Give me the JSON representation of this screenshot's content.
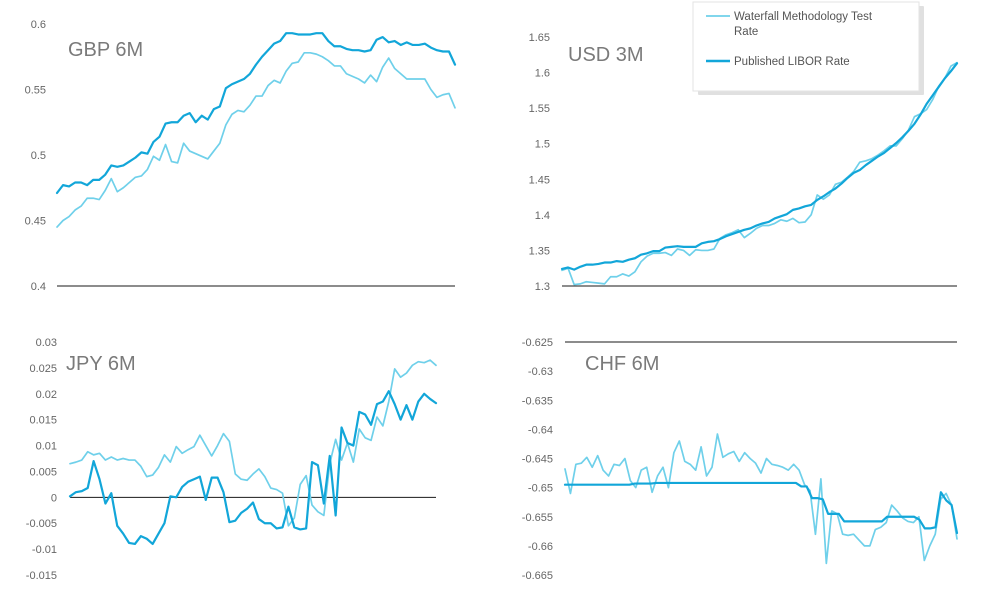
{
  "colors": {
    "test": "#6fd0ea",
    "libor": "#12a6d9",
    "axis": "#1a1a1a",
    "text": "#666666",
    "title": "#7a7a7a"
  },
  "legend": {
    "test_label_line1": "Waterfall Methodology Test",
    "test_label_line2": "Rate",
    "libor_label": "Published LIBOR Rate",
    "placement": "top-right"
  },
  "chart_data": [
    {
      "type": "line",
      "title": "GBP 6M",
      "ylim": [
        0.4,
        0.6
      ],
      "yticks": [
        "0.6",
        "0.55",
        "0.5",
        "0.45",
        "0.4"
      ],
      "ytick_values": [
        0.6,
        0.55,
        0.5,
        0.45,
        0.4
      ],
      "baseline": 0.4,
      "grid": false,
      "series": [
        {
          "key": "test",
          "values": [
            0.445,
            0.45,
            0.453,
            0.458,
            0.461,
            0.467,
            0.467,
            0.466,
            0.473,
            0.482,
            0.472,
            0.475,
            0.479,
            0.483,
            0.484,
            0.489,
            0.499,
            0.496,
            0.508,
            0.495,
            0.494,
            0.509,
            0.503,
            0.501,
            0.499,
            0.497,
            0.503,
            0.509,
            0.523,
            0.531,
            0.534,
            0.533,
            0.538,
            0.545,
            0.545,
            0.553,
            0.557,
            0.555,
            0.564,
            0.57,
            0.571,
            0.578,
            0.578,
            0.577,
            0.575,
            0.572,
            0.568,
            0.568,
            0.562,
            0.56,
            0.558,
            0.555,
            0.561,
            0.556,
            0.567,
            0.574,
            0.566,
            0.562,
            0.558,
            0.558,
            0.558,
            0.558,
            0.55,
            0.544,
            0.546,
            0.547,
            0.536
          ]
        },
        {
          "key": "libor",
          "values": [
            0.471,
            0.477,
            0.476,
            0.479,
            0.479,
            0.477,
            0.481,
            0.481,
            0.485,
            0.492,
            0.491,
            0.492,
            0.495,
            0.498,
            0.502,
            0.501,
            0.51,
            0.514,
            0.524,
            0.525,
            0.525,
            0.53,
            0.532,
            0.525,
            0.53,
            0.527,
            0.535,
            0.537,
            0.551,
            0.554,
            0.556,
            0.558,
            0.562,
            0.569,
            0.575,
            0.58,
            0.585,
            0.587,
            0.593,
            0.593,
            0.592,
            0.592,
            0.592,
            0.593,
            0.593,
            0.587,
            0.583,
            0.583,
            0.581,
            0.58,
            0.58,
            0.579,
            0.58,
            0.588,
            0.59,
            0.586,
            0.587,
            0.584,
            0.586,
            0.584,
            0.584,
            0.585,
            0.582,
            0.58,
            0.579,
            0.579,
            0.569
          ]
        }
      ]
    },
    {
      "type": "line",
      "title": "USD 3M",
      "ylim": [
        1.3,
        1.65
      ],
      "yticks": [
        "1.65",
        "1.6",
        "1.55",
        "1.5",
        "1.45",
        "1.4",
        "1.35",
        "1.3"
      ],
      "ytick_values": [
        1.65,
        1.6,
        1.55,
        1.5,
        1.45,
        1.4,
        1.35,
        1.3
      ],
      "baseline": 1.3,
      "grid": false,
      "series": [
        {
          "key": "test",
          "values": [
            1.322,
            1.325,
            1.302,
            1.303,
            1.306,
            1.305,
            1.304,
            1.303,
            1.313,
            1.313,
            1.317,
            1.314,
            1.32,
            1.334,
            1.342,
            1.346,
            1.346,
            1.347,
            1.343,
            1.352,
            1.35,
            1.343,
            1.351,
            1.35,
            1.35,
            1.352,
            1.367,
            1.372,
            1.375,
            1.379,
            1.368,
            1.374,
            1.381,
            1.385,
            1.385,
            1.388,
            1.393,
            1.391,
            1.395,
            1.389,
            1.39,
            1.4,
            1.428,
            1.422,
            1.428,
            1.443,
            1.446,
            1.453,
            1.461,
            1.474,
            1.476,
            1.479,
            1.484,
            1.49,
            1.497,
            1.497,
            1.507,
            1.519,
            1.538,
            1.542,
            1.548,
            1.562,
            1.581,
            1.592,
            1.609,
            1.614
          ]
        },
        {
          "key": "libor",
          "values": [
            1.324,
            1.326,
            1.323,
            1.327,
            1.33,
            1.33,
            1.331,
            1.333,
            1.333,
            1.335,
            1.334,
            1.337,
            1.339,
            1.344,
            1.346,
            1.349,
            1.349,
            1.354,
            1.355,
            1.356,
            1.355,
            1.355,
            1.355,
            1.36,
            1.362,
            1.363,
            1.366,
            1.37,
            1.373,
            1.376,
            1.379,
            1.381,
            1.385,
            1.388,
            1.39,
            1.395,
            1.398,
            1.401,
            1.407,
            1.409,
            1.412,
            1.414,
            1.421,
            1.426,
            1.432,
            1.437,
            1.444,
            1.452,
            1.459,
            1.463,
            1.47,
            1.476,
            1.482,
            1.487,
            1.494,
            1.501,
            1.509,
            1.518,
            1.528,
            1.541,
            1.556,
            1.568,
            1.58,
            1.592,
            1.602,
            1.613
          ]
        }
      ]
    },
    {
      "type": "line",
      "title": "JPY 6M",
      "ylim": [
        -0.015,
        0.03
      ],
      "yticks": [
        "0.03",
        "0.025",
        "0.02",
        "0.015",
        "0.01",
        "0.005",
        "0",
        "-0.005",
        "-0.01",
        "-0.015"
      ],
      "ytick_values": [
        0.03,
        0.025,
        0.02,
        0.015,
        0.01,
        0.005,
        0,
        -0.005,
        -0.01,
        -0.015
      ],
      "baseline": 0,
      "grid": false,
      "series": [
        {
          "key": "test",
          "values": [
            0.0065,
            0.0068,
            0.0072,
            0.0088,
            0.0082,
            0.0085,
            0.0072,
            0.0078,
            0.0072,
            0.0075,
            0.0072,
            0.0072,
            0.006,
            0.004,
            0.0043,
            0.0058,
            0.0082,
            0.0068,
            0.0098,
            0.0085,
            0.0092,
            0.0098,
            0.012,
            0.01,
            0.008,
            0.01,
            0.0123,
            0.0108,
            0.0045,
            0.0035,
            0.0033,
            0.0045,
            0.0055,
            0.004,
            0.0018,
            0.0015,
            0.0008,
            -0.0055,
            -0.004,
            0.0025,
            0.0042,
            -0.0015,
            -0.0028,
            -0.0035,
            0.0065,
            0.0112,
            0.0072,
            0.0105,
            0.0068,
            0.0132,
            0.0115,
            0.011,
            0.0155,
            0.0138,
            0.0185,
            0.0248,
            0.0232,
            0.024,
            0.0255,
            0.0262,
            0.026,
            0.0265,
            0.0255
          ]
        },
        {
          "key": "libor",
          "values": [
            0.0002,
            0.001,
            0.0012,
            0.0018,
            0.007,
            0.0035,
            -0.0012,
            0.0008,
            -0.0055,
            -0.007,
            -0.0088,
            -0.009,
            -0.0075,
            -0.008,
            -0.009,
            -0.007,
            -0.005,
            0.0002,
            0.0,
            0.002,
            0.003,
            0.0035,
            0.004,
            -0.0005,
            0.0038,
            0.0038,
            0.001,
            -0.0048,
            -0.0045,
            -0.003,
            -0.0022,
            -0.001,
            -0.0042,
            -0.005,
            -0.005,
            -0.006,
            -0.0058,
            -0.0018,
            -0.0058,
            -0.0062,
            -0.006,
            0.0068,
            0.0062,
            -0.0012,
            0.008,
            -0.0035,
            0.0135,
            0.0105,
            0.01,
            0.0165,
            0.016,
            0.014,
            0.018,
            0.0185,
            0.0205,
            0.018,
            0.015,
            0.0178,
            0.015,
            0.0185,
            0.02,
            0.019,
            0.0182
          ]
        }
      ]
    },
    {
      "type": "line",
      "title": "CHF 6M",
      "ylim": [
        -0.665,
        -0.625
      ],
      "yticks": [
        "-0.625",
        "-0.63",
        "-0.635",
        "-0.64",
        "-0.645",
        "-0.65",
        "-0.655",
        "-0.66",
        "-0.665"
      ],
      "ytick_values": [
        -0.625,
        -0.63,
        -0.635,
        -0.64,
        -0.645,
        -0.65,
        -0.655,
        -0.66,
        -0.665
      ],
      "baseline": -0.625,
      "grid": false,
      "series": [
        {
          "key": "test",
          "values": [
            -0.6468,
            -0.651,
            -0.646,
            -0.6458,
            -0.6448,
            -0.6465,
            -0.6445,
            -0.647,
            -0.648,
            -0.646,
            -0.6462,
            -0.645,
            -0.6488,
            -0.65,
            -0.647,
            -0.6465,
            -0.6508,
            -0.648,
            -0.6465,
            -0.65,
            -0.644,
            -0.642,
            -0.6455,
            -0.646,
            -0.647,
            -0.643,
            -0.648,
            -0.6465,
            -0.6408,
            -0.6448,
            -0.6442,
            -0.6438,
            -0.6455,
            -0.644,
            -0.645,
            -0.6458,
            -0.6475,
            -0.645,
            -0.646,
            -0.6462,
            -0.6465,
            -0.647,
            -0.646,
            -0.647,
            -0.6495,
            -0.6505,
            -0.658,
            -0.6485,
            -0.663,
            -0.654,
            -0.6545,
            -0.658,
            -0.6582,
            -0.658,
            -0.659,
            -0.66,
            -0.66,
            -0.6572,
            -0.6568,
            -0.656,
            -0.653,
            -0.654,
            -0.6552,
            -0.6558,
            -0.656,
            -0.655,
            -0.6625,
            -0.66,
            -0.658,
            -0.652,
            -0.651,
            -0.653,
            -0.6588
          ]
        },
        {
          "key": "libor",
          "values": [
            -0.6495,
            -0.6495,
            -0.6495,
            -0.6495,
            -0.6495,
            -0.6495,
            -0.6495,
            -0.6495,
            -0.6495,
            -0.6495,
            -0.6495,
            -0.6495,
            -0.6495,
            -0.6493,
            -0.6493,
            -0.6493,
            -0.6493,
            -0.6492,
            -0.6492,
            -0.6492,
            -0.6492,
            -0.6492,
            -0.6492,
            -0.6492,
            -0.6492,
            -0.6492,
            -0.6492,
            -0.6492,
            -0.6492,
            -0.6492,
            -0.6492,
            -0.6492,
            -0.6492,
            -0.6492,
            -0.6492,
            -0.6492,
            -0.6492,
            -0.6492,
            -0.6492,
            -0.6492,
            -0.6492,
            -0.6492,
            -0.6492,
            -0.6492,
            -0.6498,
            -0.6498,
            -0.6518,
            -0.6518,
            -0.652,
            -0.6545,
            -0.6545,
            -0.6545,
            -0.6558,
            -0.6558,
            -0.6558,
            -0.6558,
            -0.6558,
            -0.6558,
            -0.6558,
            -0.6558,
            -0.655,
            -0.655,
            -0.655,
            -0.655,
            -0.655,
            -0.655,
            -0.6555,
            -0.657,
            -0.657,
            -0.6568,
            -0.6508,
            -0.6522,
            -0.653,
            -0.6578
          ]
        }
      ]
    }
  ]
}
